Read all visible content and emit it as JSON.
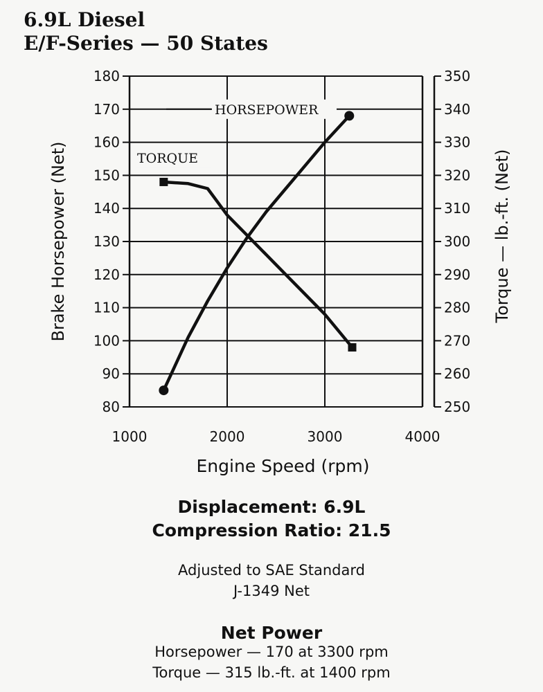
{
  "header": {
    "title_line1": "6.9L Diesel",
    "title_line2": "E/F-Series — 50 States"
  },
  "chart_data": {
    "type": "line",
    "xlabel": "Engine Speed (rpm)",
    "ylabel_left": "Brake Horsepower (Net)",
    "ylabel_right": "Torque — lb.-ft. (Net)",
    "xlim": [
      1000,
      4000
    ],
    "ylim_left": [
      80,
      180
    ],
    "ylim_right": [
      250,
      350
    ],
    "x_ticks": [
      1000,
      2000,
      3000,
      4000
    ],
    "y_ticks_left": [
      80,
      90,
      100,
      110,
      120,
      130,
      140,
      150,
      160,
      170,
      180
    ],
    "y_ticks_right": [
      250,
      260,
      270,
      280,
      290,
      300,
      310,
      320,
      330,
      340,
      350
    ],
    "grid": "horizontal",
    "series": [
      {
        "name": "HORSEPOWER",
        "axis": "left",
        "marker": "circle",
        "x": [
          1350,
          1600,
          1800,
          2000,
          2200,
          2400,
          2600,
          2800,
          3000,
          3250
        ],
        "y": [
          85,
          101,
          112,
          122,
          131,
          139,
          146,
          153,
          160,
          168
        ]
      },
      {
        "name": "TORQUE",
        "axis": "right",
        "marker": "square",
        "x": [
          1350,
          1600,
          1800,
          1900,
          2000,
          2200,
          2400,
          2600,
          2800,
          3000,
          3280
        ],
        "y": [
          318,
          317.5,
          316,
          312,
          308,
          302,
          296,
          290,
          284,
          278,
          268
        ]
      }
    ]
  },
  "specs": {
    "displacement": "Displacement: 6.9L",
    "compression": "Compression Ratio: 21.5",
    "adjusted_line1": "Adjusted to SAE Standard",
    "adjusted_line2": "J-1349 Net",
    "net_power_title": "Net Power",
    "hp_line": "Horsepower — 170 at 3300 rpm",
    "torque_line": "Torque — 315 lb.-ft. at 1400 rpm"
  }
}
